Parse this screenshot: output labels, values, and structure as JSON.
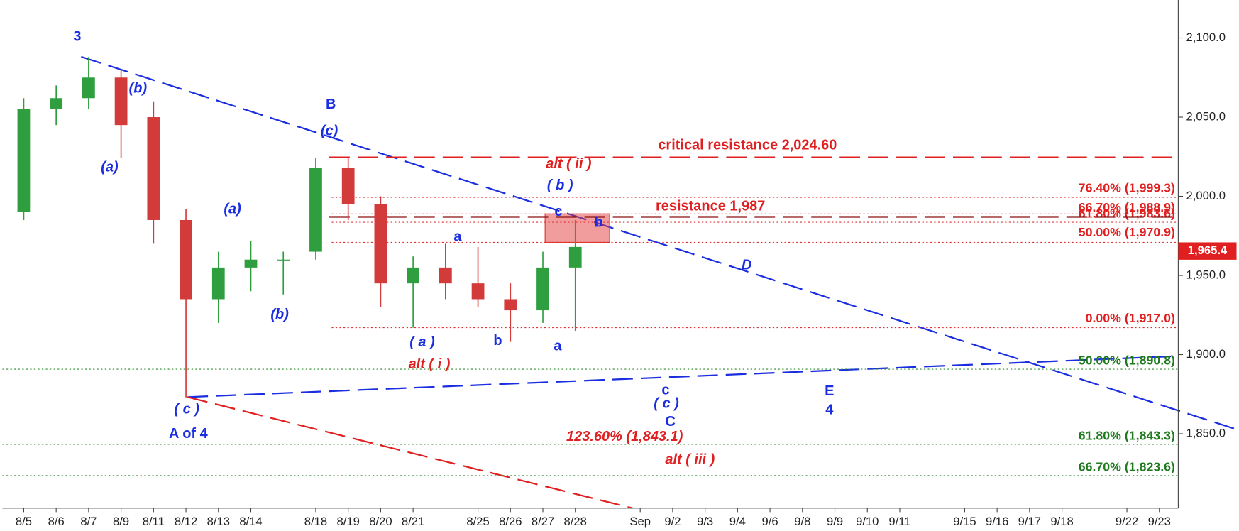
{
  "chart_data": {
    "type": "candlestick",
    "categories": [
      "8/5",
      "8/6",
      "8/7",
      "8/9",
      "8/11",
      "8/12",
      "8/13",
      "8/14",
      null,
      "8/18",
      "8/19",
      "8/20",
      "8/21",
      null,
      "8/25",
      "8/26",
      "8/27",
      "8/28",
      null,
      "Sep",
      "9/2",
      "9/3",
      "9/4",
      "9/6",
      "9/8",
      "9/9",
      "9/10",
      "9/11",
      null,
      "9/15",
      "9/16",
      "9/17",
      "9/18",
      null,
      "9/22",
      "9/23"
    ],
    "open": [
      1990,
      2055,
      2062,
      2075,
      2050,
      1985,
      1935,
      1955,
      1960,
      1965,
      2018,
      1995,
      1945,
      1955,
      1945,
      1935,
      1928,
      1955,
      null,
      null,
      null,
      null,
      null,
      null,
      null,
      null,
      null,
      null,
      null,
      null,
      null,
      null,
      null,
      null,
      null,
      null
    ],
    "high": [
      2062,
      2070,
      2088,
      2080,
      2060,
      1992,
      1965,
      1972,
      1965,
      2024,
      2025,
      2000,
      1962,
      1970,
      1968,
      1945,
      1965,
      1985,
      null,
      null,
      null,
      null,
      null,
      null,
      null,
      null,
      null,
      null,
      null,
      null,
      null,
      null,
      null,
      null,
      null,
      null
    ],
    "low": [
      1985,
      2045,
      2055,
      2024,
      1970,
      1873,
      1920,
      1940,
      1938,
      1960,
      1985,
      1930,
      1917,
      1935,
      1930,
      1908,
      1920,
      1915,
      null,
      null,
      null,
      null,
      null,
      null,
      null,
      null,
      null,
      null,
      null,
      null,
      null,
      null,
      null,
      null,
      null,
      null
    ],
    "close": [
      2055,
      2062,
      2075,
      2045,
      1985,
      1935,
      1955,
      1960,
      1960,
      2018,
      1995,
      1945,
      1955,
      1945,
      1935,
      1928,
      1955,
      1968,
      null,
      null,
      null,
      null,
      null,
      null,
      null,
      null,
      null,
      null,
      null,
      null,
      null,
      null,
      null,
      null,
      null,
      null
    ],
    "up_color": "#2e9e3e",
    "down_color": "#d33a3a",
    "ylim": [
      1803,
      2124
    ],
    "yticks": [
      {
        "value": 1850,
        "label": "1,850.0"
      },
      {
        "value": 1900,
        "label": "1,900.0"
      },
      {
        "value": 1950,
        "label": "1,950.0"
      },
      {
        "value": 2000,
        "label": "2,000.0"
      },
      {
        "value": 2050,
        "label": "2,050.0"
      },
      {
        "value": 2100,
        "label": "2,100.0"
      }
    ],
    "last_price": {
      "value": 1965.4,
      "label": "1,965.4"
    },
    "resistance": [
      {
        "value": 2024.6,
        "label": "critical resistance 2,024.60"
      },
      {
        "value": 1987,
        "label": "resistance 1,987"
      }
    ],
    "fib_red": [
      {
        "value": 1999.3,
        "label": "76.40% (1,999.3)"
      },
      {
        "value": 1988.9,
        "label": "66.70% (1,988.9)"
      },
      {
        "value": 1983.6,
        "label": "61.80% (1,983.6)"
      },
      {
        "value": 1970.9,
        "label": "50.00% (1,970.9)"
      },
      {
        "value": 1917.0,
        "label": "0.00% (1,917.0)"
      }
    ],
    "fib_green": [
      {
        "value": 1890.8,
        "label": "50.00% (1,890.8)"
      },
      {
        "value": 1843.3,
        "label": "61.80% (1,843.3)"
      },
      {
        "value": 1823.6,
        "label": "66.70% (1,823.6)"
      }
    ],
    "annotations": [
      "3",
      "(b)",
      "(a)",
      "B",
      "(c)",
      "(a)",
      "(b)",
      "( c )",
      "A of 4",
      "alt ( ii )",
      "( b )",
      "c",
      "b",
      "a",
      "D",
      "( a )",
      "alt ( i )",
      "b",
      "a",
      "c",
      "( c )",
      "C",
      "E",
      "4",
      "123.60% (1,843.1)",
      "alt ( iii )"
    ]
  }
}
